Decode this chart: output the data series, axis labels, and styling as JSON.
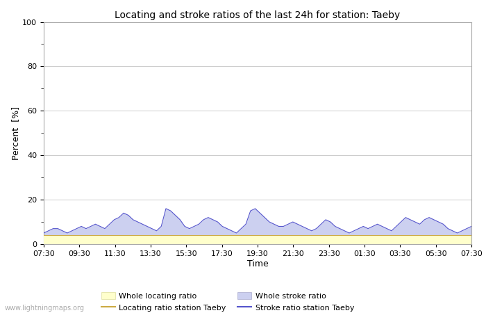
{
  "title": "Locating and stroke ratios of the last 24h for station: Taeby",
  "xlabel": "Time",
  "ylabel": "Percent  [%]",
  "xlim": [
    0,
    48
  ],
  "ylim": [
    0,
    100
  ],
  "yticks": [
    0,
    20,
    40,
    60,
    80,
    100
  ],
  "xtick_labels": [
    "07:30",
    "09:30",
    "11:30",
    "13:30",
    "15:30",
    "17:30",
    "19:30",
    "21:30",
    "23:30",
    "01:30",
    "03:30",
    "05:30",
    "07:30"
  ],
  "background_color": "#ffffff",
  "plot_bg_color": "#ffffff",
  "grid_color": "#cccccc",
  "watermark": "www.lightningmaps.org",
  "stroke_fill_color": "#ccd0f0",
  "stroke_line_color": "#5555cc",
  "locating_fill_color": "#ffffcc",
  "locating_line_color": "#ccaa44",
  "stroke_data": [
    5,
    6,
    7,
    7,
    6,
    5,
    6,
    7,
    8,
    7,
    8,
    9,
    8,
    7,
    9,
    11,
    12,
    14,
    13,
    11,
    10,
    9,
    8,
    7,
    6,
    8,
    16,
    15,
    13,
    11,
    8,
    7,
    8,
    9,
    11,
    12,
    11,
    10,
    8,
    7,
    6,
    5,
    7,
    9,
    15,
    16,
    14,
    12,
    10,
    9,
    8,
    8,
    9,
    10,
    9,
    8,
    7,
    6,
    7,
    9,
    11,
    10,
    8,
    7,
    6,
    5,
    6,
    7,
    8,
    7,
    8,
    9,
    8,
    7,
    6,
    8,
    10,
    12,
    11,
    10,
    9,
    11,
    12,
    11,
    10,
    9,
    7,
    6,
    5,
    6,
    7,
    8
  ],
  "locating_data": [
    4,
    4,
    4,
    4,
    4,
    4,
    4,
    4,
    4,
    4,
    4,
    4,
    4,
    4,
    4,
    4,
    4,
    4,
    4,
    4,
    4,
    4,
    4,
    4,
    4,
    4,
    4,
    4,
    4,
    4,
    4,
    4,
    4,
    4,
    4,
    4,
    4,
    4,
    4,
    4,
    4,
    4,
    4,
    4,
    4,
    4,
    4,
    4,
    4,
    4,
    4,
    4,
    4,
    4,
    4,
    4,
    4,
    4,
    4,
    4,
    4,
    4,
    4,
    4,
    4,
    4,
    4,
    4,
    4,
    4,
    4,
    4,
    4,
    4,
    4,
    4,
    4,
    4,
    4,
    4,
    4,
    4,
    4,
    4,
    4,
    4,
    4,
    4,
    4,
    4,
    4,
    4
  ]
}
